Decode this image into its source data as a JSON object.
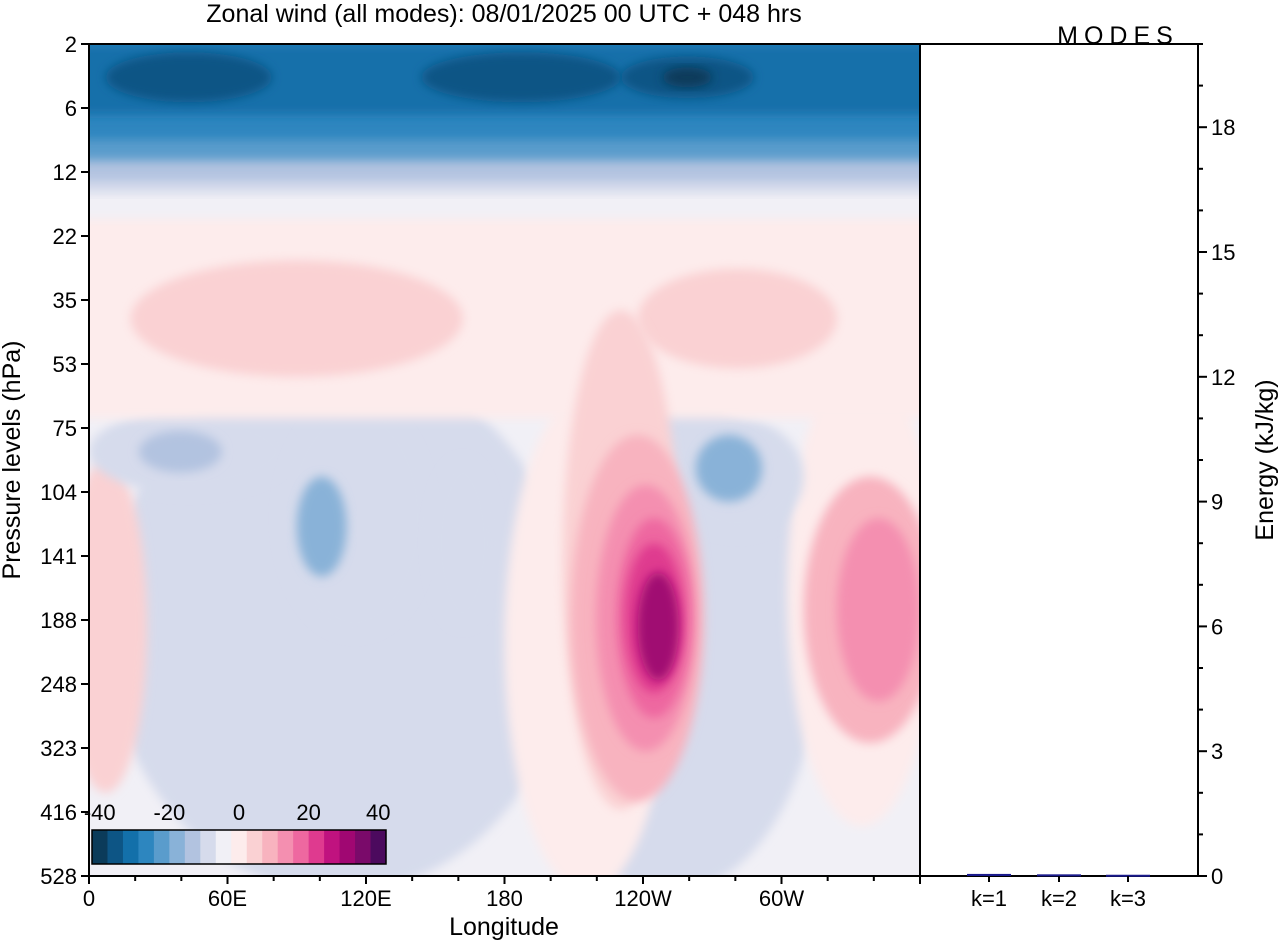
{
  "title": "Zonal wind (all modes):  08/01/2025  00 UTC  + 048 hrs",
  "logo": "MODES",
  "colors": {
    "frame": "#000000",
    "scale": [
      "#0b3b5a",
      "#0d5585",
      "#1370aa",
      "#2d86bf",
      "#5a9ccc",
      "#89b2d8",
      "#b2c3e0",
      "#d6dbec",
      "#f1f0f6",
      "#fdecec",
      "#fad1d3",
      "#f8b3bf",
      "#f48fb0",
      "#ee68a0",
      "#df3a8f",
      "#c0127f",
      "#a00772",
      "#7a0a6a",
      "#4c0a5e"
    ]
  },
  "chart_data": [
    {
      "type": "heatmap",
      "xlabel": "Longitude",
      "ylabel": "Pressure levels (hPa)",
      "x_ticks": [
        "0",
        "60E",
        "120E",
        "180",
        "120W",
        "60W"
      ],
      "y_ticks": [
        "2",
        "6",
        "12",
        "22",
        "35",
        "53",
        "75",
        "104",
        "141",
        "188",
        "248",
        "323",
        "416",
        "528"
      ],
      "colorbar": {
        "ticks": [
          "-40",
          "-20",
          "0",
          "20",
          "40"
        ],
        "range": [
          -40,
          40
        ]
      },
      "features": [
        {
          "kind": "easterly-band",
          "levels_hPa": [
            2,
            14
          ],
          "min_value": -40
        },
        {
          "kind": "westerly-layer",
          "levels_hPa": [
            16,
            60
          ],
          "value": 8
        },
        {
          "kind": "jet",
          "longitude": "120W",
          "level_hPa": 188,
          "max_value": 40
        },
        {
          "kind": "jet",
          "longitude": "15W",
          "level_hPa": 188,
          "max_value": 20
        }
      ]
    },
    {
      "type": "bar",
      "categories": [
        "k=1",
        "k=2",
        "k=3"
      ],
      "values": [
        0.05,
        0.04,
        0.03
      ],
      "ylabel": "Energy (kJ/kg)",
      "y_ticks": [
        "0",
        "3",
        "6",
        "9",
        "12",
        "15",
        "18"
      ],
      "ylim": [
        0,
        20
      ]
    }
  ]
}
